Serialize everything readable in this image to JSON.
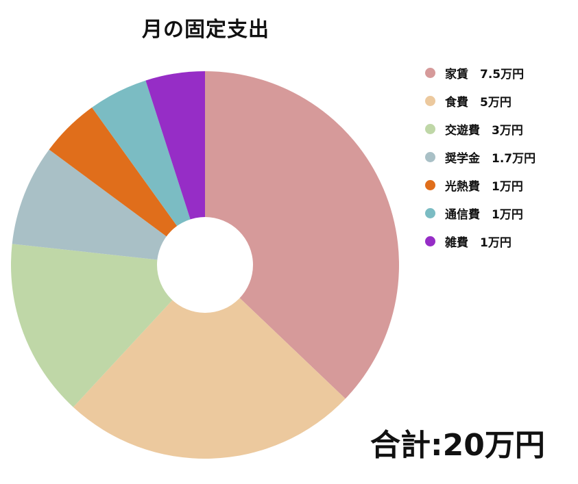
{
  "chart_data": {
    "type": "pie",
    "title": "月の固定支出",
    "slices": [
      {
        "label": "家賃",
        "value": 7.5,
        "legend": "家賃　7.5万円",
        "color": "#d69a9a"
      },
      {
        "label": "食費",
        "value": 5,
        "legend": "食費　5万円",
        "color": "#ecc99e"
      },
      {
        "label": "交遊費",
        "value": 3,
        "legend": "交遊費　3万円",
        "color": "#bfd7a7"
      },
      {
        "label": "奨学金",
        "value": 1.7,
        "legend": "奨学金　1.7万円",
        "color": "#a9c0c6"
      },
      {
        "label": "光熱費",
        "value": 1,
        "legend": "光熱費　1万円",
        "color": "#e06e1b"
      },
      {
        "label": "通信費",
        "value": 1,
        "legend": "通信費　1万円",
        "color": "#7bbcc3"
      },
      {
        "label": "雑費",
        "value": 1,
        "legend": "雑費　1万円",
        "color": "#962dc6"
      }
    ],
    "donut_hole": true,
    "legend_position": "top-right"
  },
  "total_label": "合計:20万円"
}
